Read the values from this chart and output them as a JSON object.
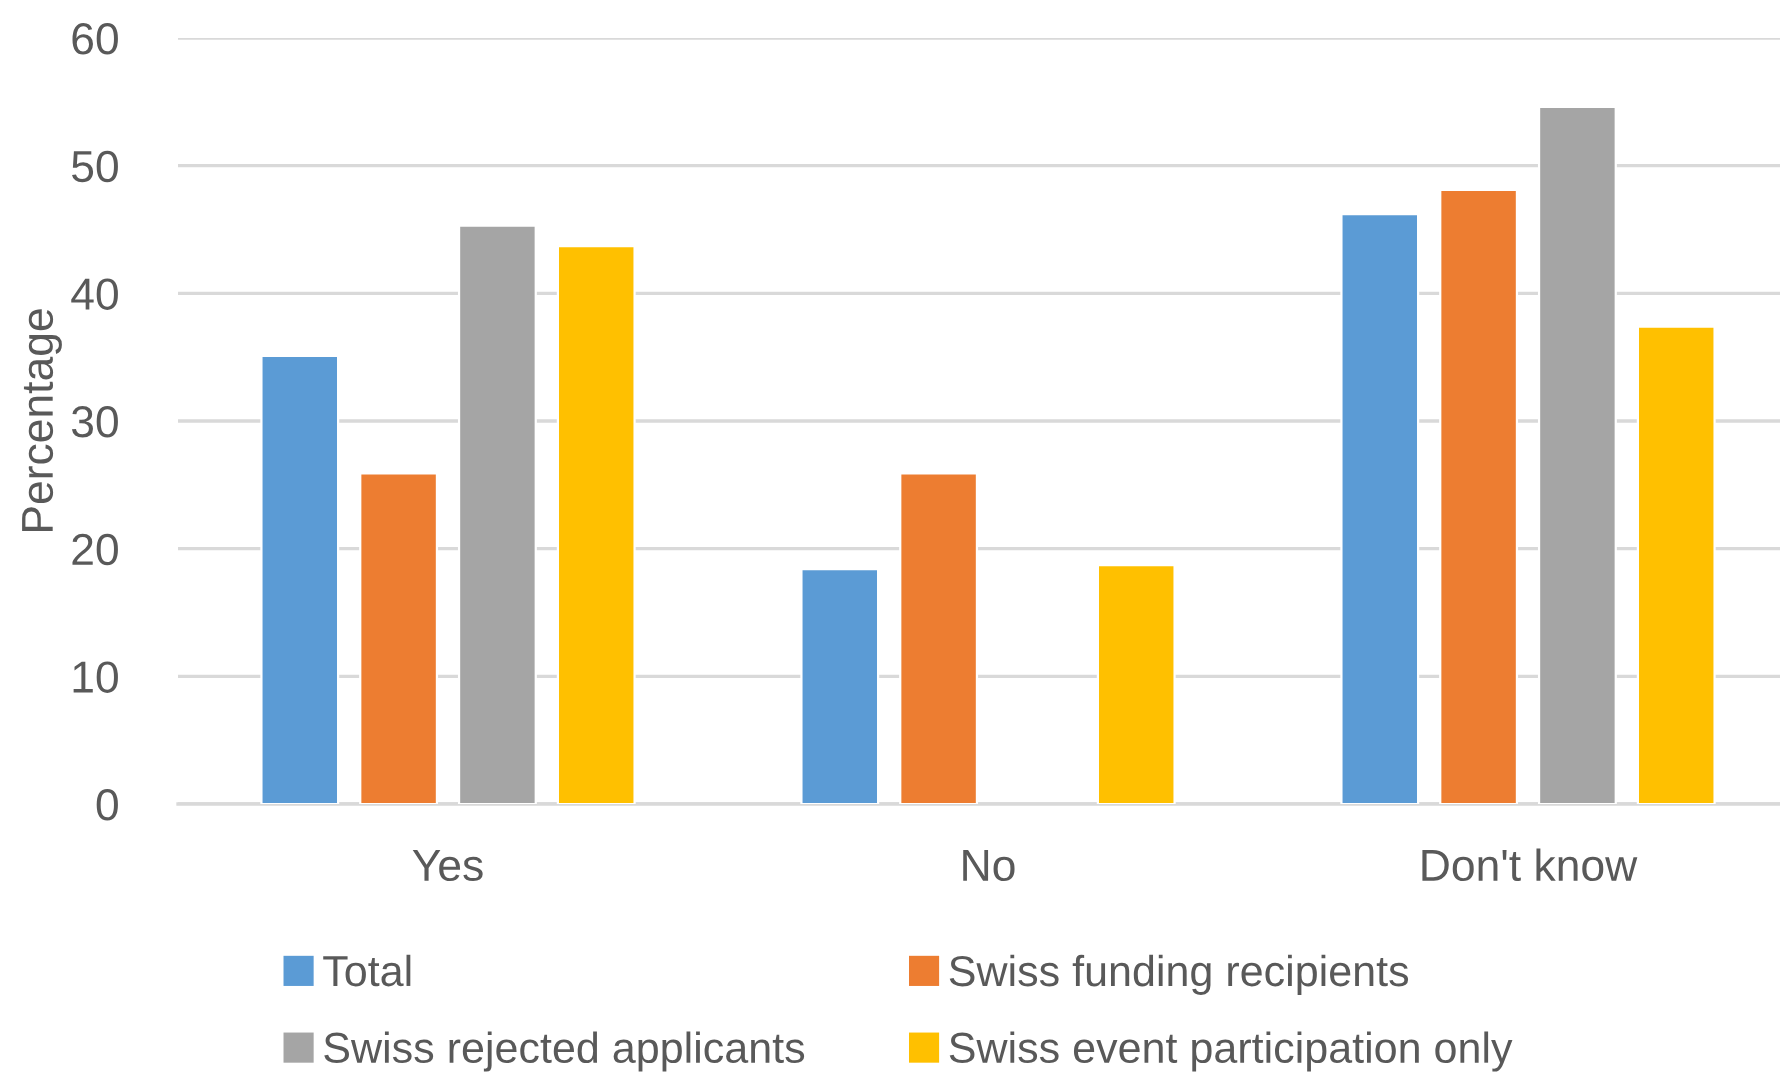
{
  "chart_data": {
    "type": "bar",
    "ylabel": "Percentage",
    "categories": [
      "Yes",
      "No",
      "Don't know"
    ],
    "series": [
      {
        "name": "Total",
        "color": "#5b9bd5",
        "values": [
          35.1,
          18.4,
          46.2
        ]
      },
      {
        "name": "Swiss funding recipients",
        "color": "#ed7d31",
        "values": [
          25.9,
          25.9,
          48.1
        ]
      },
      {
        "name": "Swiss rejected applicants",
        "color": "#a5a5a5",
        "values": [
          45.3,
          null,
          54.6
        ]
      },
      {
        "name": "Swiss event participation only",
        "color": "#ffc000",
        "values": [
          43.7,
          18.7,
          37.4
        ]
      }
    ],
    "ylim": [
      0,
      60
    ],
    "yticks": [
      0,
      10,
      20,
      30,
      40,
      50,
      60
    ],
    "grid": "y",
    "legend": "bottom"
  }
}
